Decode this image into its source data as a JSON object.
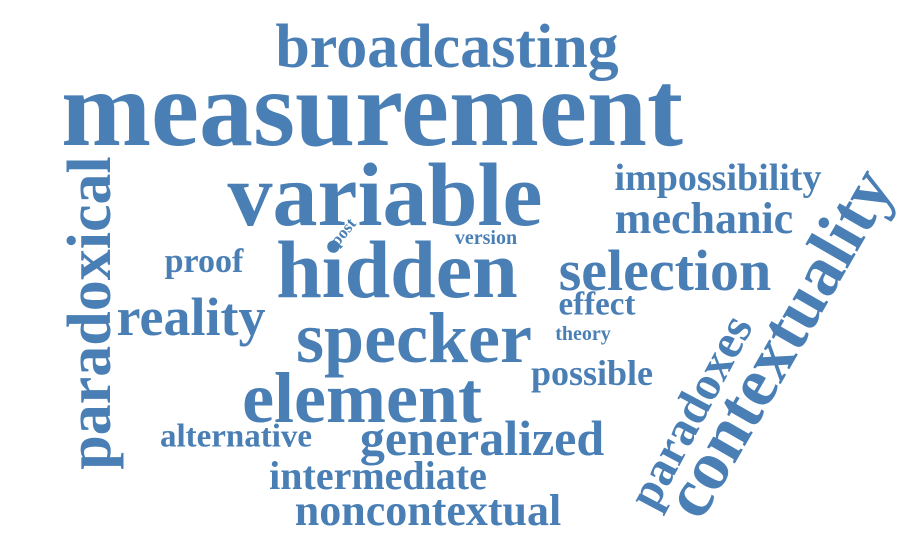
{
  "color": "#4a7fb5",
  "words": {
    "broadcasting": "broadcasting",
    "measurement": "measurement",
    "variable": "variable",
    "hidden": "hidden",
    "specker": "specker",
    "element": "element",
    "generalized": "generalized",
    "impossibility": "impossibility",
    "mechanic": "mechanic",
    "selection": "selection",
    "effect": "effect",
    "theory": "theory",
    "possible": "possible",
    "reality": "reality",
    "proof": "proof",
    "version": "version",
    "post": "post",
    "alternative": "alternative",
    "intermediate": "intermediate",
    "noncontextual": "noncontextual",
    "paradoxical": "paradoxical",
    "paradoxes": "paradoxes",
    "contextuality": "contextuality"
  }
}
